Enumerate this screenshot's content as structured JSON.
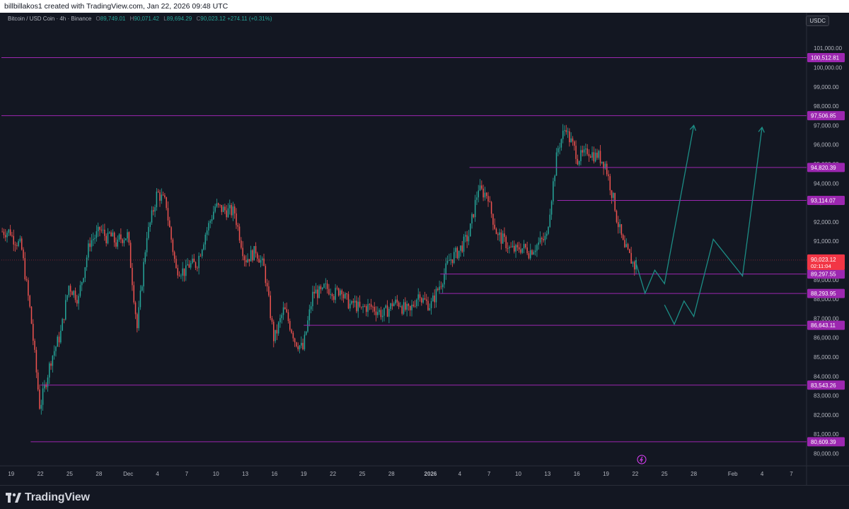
{
  "header": {
    "attribution": "billbillakos1 created with TradingView.com, Jan 22, 2026 09:48 UTC"
  },
  "legend": {
    "symbol": "Bitcoin / USD Coin · 4h · Binance",
    "open_label": "O",
    "open": "89,749.01",
    "high_label": "H",
    "high": "90,071.42",
    "low_label": "L",
    "low": "89,694.29",
    "close_label": "C",
    "close": "90,023.12",
    "change": "+274.11 (+0.31%)"
  },
  "quote_currency": "USDC",
  "footer": {
    "brand": "TradingView",
    "logo_icon": "tradingview-logo-icon"
  },
  "colors": {
    "background": "#131722",
    "up": "#26a69a",
    "down": "#ef5350",
    "level_line": "#9c27b0",
    "projection": "#1c8d85",
    "last_price": "#f23645"
  },
  "chart_data": {
    "type": "candlestick",
    "title": "",
    "xlabel": "",
    "ylabel": "",
    "ylim": [
      79800,
      102200
    ],
    "grid": false,
    "y_ticks": [
      "80,000.00",
      "81,000.00",
      "82,000.00",
      "83,000.00",
      "84,000.00",
      "85,000.00",
      "86,000.00",
      "87,000.00",
      "88,000.00",
      "89,000.00",
      "90,000.00",
      "91,000.00",
      "92,000.00",
      "93,000.00",
      "94,000.00",
      "95,000.00",
      "96,000.00",
      "97,000.00",
      "98,000.00",
      "99,000.00",
      "100,000.00",
      "101,000.00"
    ],
    "x_ticks": [
      {
        "label": "19",
        "date": "2025-11-19"
      },
      {
        "label": "22",
        "date": "2025-11-22"
      },
      {
        "label": "25",
        "date": "2025-11-25"
      },
      {
        "label": "28",
        "date": "2025-11-28"
      },
      {
        "label": "Dec",
        "date": "2025-12-01"
      },
      {
        "label": "4",
        "date": "2025-12-04"
      },
      {
        "label": "7",
        "date": "2025-12-07"
      },
      {
        "label": "10",
        "date": "2025-12-10"
      },
      {
        "label": "13",
        "date": "2025-12-13"
      },
      {
        "label": "16",
        "date": "2025-12-16"
      },
      {
        "label": "19",
        "date": "2025-12-19"
      },
      {
        "label": "22",
        "date": "2025-12-22"
      },
      {
        "label": "25",
        "date": "2025-12-25"
      },
      {
        "label": "28",
        "date": "2025-12-28"
      },
      {
        "label": "2026",
        "date": "2026-01-01"
      },
      {
        "label": "4",
        "date": "2026-01-04"
      },
      {
        "label": "7",
        "date": "2026-01-07"
      },
      {
        "label": "10",
        "date": "2026-01-10"
      },
      {
        "label": "13",
        "date": "2026-01-13"
      },
      {
        "label": "16",
        "date": "2026-01-16"
      },
      {
        "label": "19",
        "date": "2026-01-19"
      },
      {
        "label": "22",
        "date": "2026-01-22"
      },
      {
        "label": "25",
        "date": "2026-01-25"
      },
      {
        "label": "28",
        "date": "2026-01-28"
      },
      {
        "label": "Feb",
        "date": "2026-02-01"
      },
      {
        "label": "4",
        "date": "2026-02-04"
      },
      {
        "label": "7",
        "date": "2026-02-07"
      }
    ],
    "horizontal_levels": [
      {
        "value": 100512.81,
        "label": "100,512.81",
        "from": "2025-11-18"
      },
      {
        "value": 97506.85,
        "label": "97,506.85",
        "from": "2025-11-18"
      },
      {
        "value": 94820.39,
        "label": "94,820.39",
        "from": "2026-01-05"
      },
      {
        "value": 93114.07,
        "label": "93,114.07",
        "from": "2026-01-14"
      },
      {
        "value": 89297.55,
        "label": "89,297.55",
        "from": "2026-01-02"
      },
      {
        "value": 88293.95,
        "label": "88,293.95",
        "from": "2026-01-02"
      },
      {
        "value": 86643.11,
        "label": "86,643.11",
        "from": "2025-12-19"
      },
      {
        "value": 83543.26,
        "label": "83,543.26",
        "from": "2025-11-22"
      },
      {
        "value": 80609.39,
        "label": "80,609.39",
        "from": "2025-11-21"
      }
    ],
    "last_price": {
      "value": 90023.12,
      "label": "90,023.12",
      "countdown": "02:11:04"
    },
    "candles": [
      {
        "date": "2025-11-18",
        "close": 91500
      },
      {
        "date": "2025-11-19",
        "close": 90800
      },
      {
        "date": "2025-11-20",
        "close": 87500
      },
      {
        "date": "2025-11-21",
        "close": 82500
      },
      {
        "date": "2025-11-22",
        "close": 84500
      },
      {
        "date": "2025-11-23",
        "close": 86000
      },
      {
        "date": "2025-11-24",
        "close": 88700
      },
      {
        "date": "2025-11-25",
        "close": 88000
      },
      {
        "date": "2025-11-26",
        "close": 90600
      },
      {
        "date": "2025-11-27",
        "close": 91400
      },
      {
        "date": "2025-11-28",
        "close": 91100
      },
      {
        "date": "2025-11-29",
        "close": 90800
      },
      {
        "date": "2025-11-30",
        "close": 91300
      },
      {
        "date": "2025-12-01",
        "close": 86500
      },
      {
        "date": "2025-12-02",
        "close": 91400
      },
      {
        "date": "2025-12-03",
        "close": 93400
      },
      {
        "date": "2025-12-04",
        "close": 92900
      },
      {
        "date": "2025-12-05",
        "close": 89500
      },
      {
        "date": "2025-12-06",
        "close": 89400
      },
      {
        "date": "2025-12-07",
        "close": 89800
      },
      {
        "date": "2025-12-08",
        "close": 91400
      },
      {
        "date": "2025-12-09",
        "close": 92800
      },
      {
        "date": "2025-12-10",
        "close": 92600
      },
      {
        "date": "2025-12-11",
        "close": 92500
      },
      {
        "date": "2025-12-12",
        "close": 90200
      },
      {
        "date": "2025-12-13",
        "close": 90400
      },
      {
        "date": "2025-12-14",
        "close": 89600
      },
      {
        "date": "2025-12-15",
        "close": 86000
      },
      {
        "date": "2025-12-16",
        "close": 87400
      },
      {
        "date": "2025-12-17",
        "close": 86200
      },
      {
        "date": "2025-12-18",
        "close": 85400
      },
      {
        "date": "2025-12-19",
        "close": 88200
      },
      {
        "date": "2025-12-20",
        "close": 88300
      },
      {
        "date": "2025-12-21",
        "close": 88500
      },
      {
        "date": "2025-12-22",
        "close": 88600
      },
      {
        "date": "2025-12-23",
        "close": 87600
      },
      {
        "date": "2025-12-24",
        "close": 87400
      },
      {
        "date": "2025-12-25",
        "close": 87600
      },
      {
        "date": "2025-12-26",
        "close": 87300
      },
      {
        "date": "2025-12-27",
        "close": 87600
      },
      {
        "date": "2025-12-28",
        "close": 87800
      },
      {
        "date": "2025-12-29",
        "close": 87300
      },
      {
        "date": "2025-12-30",
        "close": 88400
      },
      {
        "date": "2025-12-31",
        "close": 87700
      },
      {
        "date": "2026-01-01",
        "close": 88700
      },
      {
        "date": "2026-01-02",
        "close": 90000
      },
      {
        "date": "2026-01-03",
        "close": 90500
      },
      {
        "date": "2026-01-04",
        "close": 91300
      },
      {
        "date": "2026-01-05",
        "close": 93800
      },
      {
        "date": "2026-01-06",
        "close": 93400
      },
      {
        "date": "2026-01-07",
        "close": 91200
      },
      {
        "date": "2026-01-08",
        "close": 90800
      },
      {
        "date": "2026-01-09",
        "close": 90500
      },
      {
        "date": "2026-01-10",
        "close": 90600
      },
      {
        "date": "2026-01-11",
        "close": 90800
      },
      {
        "date": "2026-01-12",
        "close": 91200
      },
      {
        "date": "2026-01-13",
        "close": 95300
      },
      {
        "date": "2026-01-14",
        "close": 97000
      },
      {
        "date": "2026-01-15",
        "close": 95600
      },
      {
        "date": "2026-01-16",
        "close": 95500
      },
      {
        "date": "2026-01-17",
        "close": 95400
      },
      {
        "date": "2026-01-18",
        "close": 95000
      },
      {
        "date": "2026-01-19",
        "close": 92800
      },
      {
        "date": "2026-01-20",
        "close": 90500
      },
      {
        "date": "2026-01-21",
        "close": 89700
      },
      {
        "date": "2026-01-22",
        "close": 90023.12
      }
    ],
    "projection_paths": [
      [
        {
          "date": "2026-01-22",
          "value": 90000
        },
        {
          "date": "2026-01-23",
          "value": 88300
        },
        {
          "date": "2026-01-24",
          "value": 89500
        },
        {
          "date": "2026-01-25",
          "value": 88800
        },
        {
          "date": "2026-01-28",
          "value": 97000
        }
      ],
      [
        {
          "date": "2026-01-25",
          "value": 87700
        },
        {
          "date": "2026-01-26",
          "value": 86700
        },
        {
          "date": "2026-01-27",
          "value": 87900
        },
        {
          "date": "2026-01-28",
          "value": 87100
        },
        {
          "date": "2026-01-30",
          "value": 91100
        },
        {
          "date": "2026-02-02",
          "value": 89200
        },
        {
          "date": "2026-02-04",
          "value": 96900
        }
      ]
    ]
  }
}
